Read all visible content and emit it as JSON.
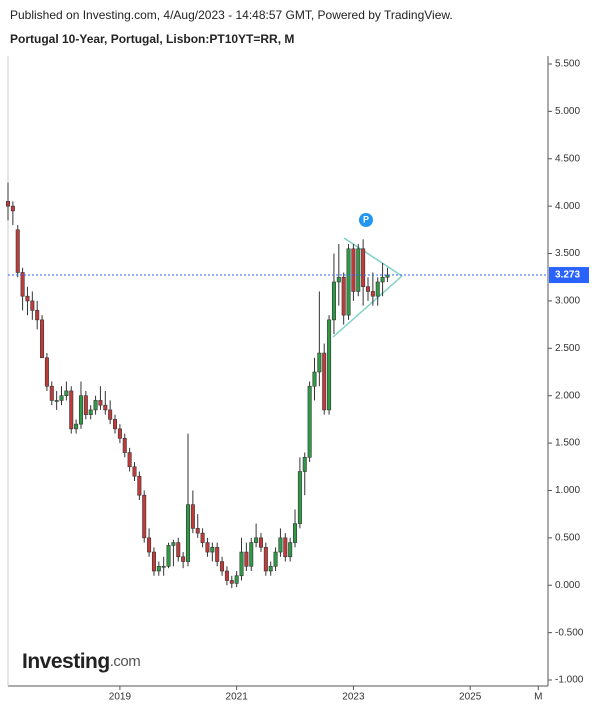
{
  "header": {
    "published": "Published on Investing.com, 4/Aug/2023 - 14:48:57 GMT, Powered by TradingView.",
    "title": "Portugal 10-Year, Portugal, Lisbon:PT10YT=RR, M"
  },
  "logo": [
    "Investing",
    ".com"
  ],
  "chart_data": {
    "type": "candlestick",
    "x": [
      "2017-02",
      "2017-03",
      "2017-04",
      "2017-05",
      "2017-06",
      "2017-07",
      "2017-08",
      "2017-09",
      "2017-10",
      "2017-11",
      "2017-12",
      "2018-01",
      "2018-02",
      "2018-03",
      "2018-04",
      "2018-05",
      "2018-06",
      "2018-07",
      "2018-08",
      "2018-09",
      "2018-10",
      "2018-11",
      "2018-12",
      "2019-01",
      "2019-02",
      "2019-03",
      "2019-04",
      "2019-05",
      "2019-06",
      "2019-07",
      "2019-08",
      "2019-09",
      "2019-10",
      "2019-11",
      "2019-12",
      "2020-01",
      "2020-02",
      "2020-03",
      "2020-04",
      "2020-05",
      "2020-06",
      "2020-07",
      "2020-08",
      "2020-09",
      "2020-10",
      "2020-11",
      "2020-12",
      "2021-01",
      "2021-02",
      "2021-03",
      "2021-04",
      "2021-05",
      "2021-06",
      "2021-07",
      "2021-08",
      "2021-09",
      "2021-10",
      "2021-11",
      "2021-12",
      "2022-01",
      "2022-02",
      "2022-03",
      "2022-04",
      "2022-05",
      "2022-06",
      "2022-07",
      "2022-08",
      "2022-09",
      "2022-10",
      "2022-11",
      "2022-12",
      "2023-01",
      "2023-02",
      "2023-03",
      "2023-04",
      "2023-05",
      "2023-06",
      "2023-07",
      "2023-08"
    ],
    "open": [
      4.05,
      4.0,
      3.75,
      3.3,
      3.05,
      3.0,
      2.9,
      2.8,
      2.4,
      2.1,
      1.95,
      1.95,
      2.0,
      2.05,
      1.65,
      1.7,
      2.0,
      1.8,
      1.85,
      1.95,
      1.9,
      1.85,
      1.75,
      1.65,
      1.55,
      1.4,
      1.25,
      1.15,
      0.95,
      0.5,
      0.35,
      0.15,
      0.2,
      0.2,
      0.42,
      0.45,
      0.3,
      0.25,
      0.85,
      0.6,
      0.55,
      0.45,
      0.35,
      0.4,
      0.25,
      0.15,
      0.05,
      0.02,
      0.1,
      0.35,
      0.2,
      0.45,
      0.5,
      0.4,
      0.15,
      0.2,
      0.35,
      0.5,
      0.3,
      0.45,
      0.65,
      1.2,
      1.35,
      2.1,
      2.25,
      2.45,
      1.85,
      2.8,
      3.2,
      3.25,
      2.85,
      3.55,
      3.1,
      3.55,
      3.15,
      3.1,
      3.05,
      3.2,
      3.25
    ],
    "high": [
      4.25,
      4.05,
      3.8,
      3.35,
      3.15,
      3.1,
      3.0,
      2.85,
      2.45,
      2.15,
      2.05,
      2.1,
      2.15,
      2.1,
      1.75,
      2.15,
      2.05,
      1.9,
      2.0,
      2.1,
      2.05,
      1.95,
      1.8,
      1.7,
      1.6,
      1.45,
      1.3,
      1.2,
      1.0,
      0.6,
      0.4,
      0.25,
      0.3,
      0.45,
      0.48,
      0.5,
      0.35,
      1.6,
      1.0,
      0.75,
      0.6,
      0.5,
      0.45,
      0.45,
      0.3,
      0.2,
      0.1,
      0.15,
      0.5,
      0.45,
      0.5,
      0.65,
      0.55,
      0.45,
      0.25,
      0.4,
      0.6,
      0.55,
      0.5,
      0.8,
      1.35,
      1.4,
      2.15,
      2.4,
      3.1,
      2.55,
      2.85,
      3.5,
      3.6,
      3.3,
      3.6,
      3.6,
      3.6,
      3.65,
      3.25,
      3.3,
      3.25,
      3.4,
      3.35
    ],
    "low": [
      3.85,
      3.8,
      3.25,
      2.9,
      2.85,
      2.8,
      2.7,
      2.4,
      2.05,
      1.9,
      1.85,
      1.9,
      1.95,
      1.6,
      1.6,
      1.65,
      1.75,
      1.75,
      1.8,
      1.85,
      1.8,
      1.7,
      1.6,
      1.5,
      1.35,
      1.2,
      1.1,
      0.9,
      0.45,
      0.3,
      0.1,
      0.1,
      0.1,
      0.18,
      0.2,
      0.25,
      0.18,
      0.2,
      0.55,
      0.5,
      0.4,
      0.3,
      0.25,
      0.2,
      0.1,
      0.0,
      -0.03,
      -0.02,
      0.05,
      0.15,
      0.15,
      0.4,
      0.35,
      0.1,
      0.1,
      0.15,
      0.3,
      0.25,
      0.25,
      0.4,
      0.6,
      0.95,
      1.3,
      1.95,
      2.1,
      1.8,
      1.8,
      2.65,
      2.95,
      2.75,
      2.8,
      3.0,
      3.05,
      2.95,
      3.0,
      2.95,
      2.95,
      3.05,
      3.2
    ],
    "close": [
      4.0,
      3.95,
      3.3,
      3.05,
      3.0,
      2.9,
      2.8,
      2.4,
      2.1,
      1.95,
      1.95,
      2.0,
      2.05,
      1.65,
      1.7,
      2.0,
      1.8,
      1.85,
      1.95,
      1.9,
      1.85,
      1.75,
      1.65,
      1.55,
      1.4,
      1.25,
      1.15,
      0.95,
      0.5,
      0.35,
      0.15,
      0.2,
      0.2,
      0.42,
      0.45,
      0.3,
      0.25,
      0.85,
      0.6,
      0.55,
      0.45,
      0.35,
      0.4,
      0.25,
      0.15,
      0.05,
      0.02,
      0.1,
      0.35,
      0.2,
      0.45,
      0.5,
      0.4,
      0.15,
      0.2,
      0.35,
      0.5,
      0.3,
      0.45,
      0.65,
      1.2,
      1.35,
      2.1,
      2.25,
      2.45,
      1.85,
      2.8,
      3.2,
      3.25,
      2.85,
      3.55,
      3.1,
      3.55,
      3.15,
      3.1,
      3.05,
      3.2,
      3.25,
      3.273
    ],
    "up_color": "#2f9a45",
    "down_color": "#c23b3b",
    "last_price": 3.273,
    "last_price_color": "#2962ff",
    "annotation": "P",
    "xlim": [
      "2017-02",
      "2026-05"
    ],
    "xticks": [
      {
        "value": "2019-01",
        "label": "2019"
      },
      {
        "value": "2021-01",
        "label": "2021"
      },
      {
        "value": "2023-01",
        "label": "2023"
      },
      {
        "value": "2025-01",
        "label": "2025"
      },
      {
        "value": "2026-03",
        "label": "M"
      }
    ],
    "ylim": [
      -1.0,
      5.5
    ],
    "yticks": [
      {
        "value": 5.5,
        "label": "5.500"
      },
      {
        "value": 5.0,
        "label": "5.000"
      },
      {
        "value": 4.5,
        "label": "4.500"
      },
      {
        "value": 4.0,
        "label": "4.000"
      },
      {
        "value": 3.5,
        "label": "3.500"
      },
      {
        "value": 3.0,
        "label": "3.000"
      },
      {
        "value": 2.5,
        "label": "2.500"
      },
      {
        "value": 2.0,
        "label": "2.000"
      },
      {
        "value": 1.5,
        "label": "1.500"
      },
      {
        "value": 1.0,
        "label": "1.000"
      },
      {
        "value": 0.5,
        "label": "0.500"
      },
      {
        "value": 0.0,
        "label": "0.000"
      },
      {
        "value": -0.5,
        "label": "-0.500"
      },
      {
        "value": -1.0,
        "label": "-1.000"
      }
    ]
  }
}
